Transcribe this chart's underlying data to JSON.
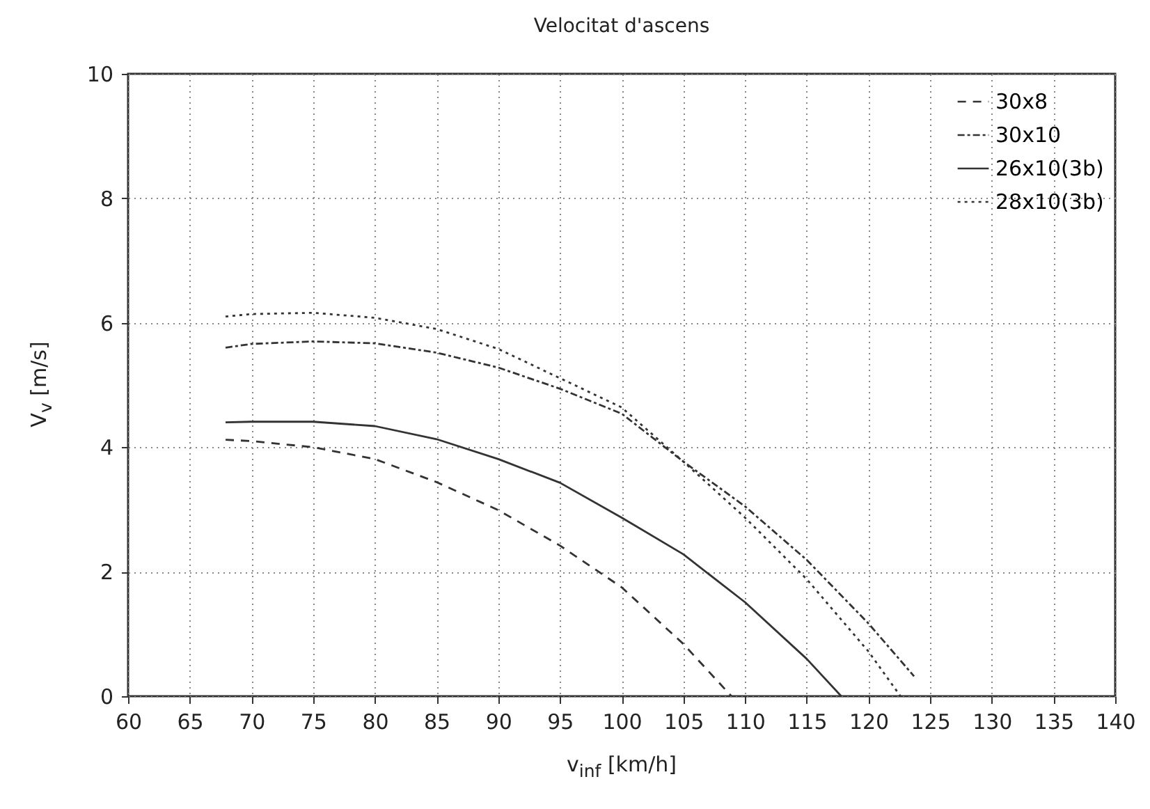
{
  "chart_data": {
    "type": "line",
    "title": "Velocitat d'ascens",
    "xlabel": "v$_{inf}$ [km/h]",
    "ylabel": "V$_{v}$ [m/s]",
    "xlim": [
      60,
      140
    ],
    "xticks": [
      60,
      65,
      70,
      75,
      80,
      85,
      90,
      95,
      100,
      105,
      110,
      115,
      120,
      125,
      130,
      135,
      140
    ],
    "ylim": [
      0,
      10
    ],
    "yticks": [
      0,
      2,
      4,
      6,
      8,
      10
    ],
    "grid": true,
    "legend": "top right",
    "series": [
      {
        "name": "30x8",
        "color": "#333333",
        "line_style": "dashed",
        "x": [
          67.9,
          70,
          75,
          80,
          85,
          90,
          95,
          100,
          105,
          108.9
        ],
        "values": [
          4.12,
          4.1,
          4.0,
          3.81,
          3.44,
          2.99,
          2.42,
          1.75,
          0.84,
          0
        ]
      },
      {
        "name": "30x10",
        "color": "#333333",
        "line_style": "dashdot",
        "x": [
          67.9,
          70,
          75,
          80,
          85,
          90,
          95,
          100,
          105,
          110,
          115,
          120,
          123.7
        ],
        "values": [
          5.6,
          5.66,
          5.7,
          5.67,
          5.52,
          5.28,
          4.94,
          4.54,
          3.77,
          3.05,
          2.19,
          1.17,
          0.32
        ]
      },
      {
        "name": "26x10(3b)",
        "color": "#333333",
        "line_style": "solid",
        "x": [
          67.9,
          70,
          75,
          80,
          85,
          90,
          95,
          100,
          105,
          110,
          115,
          117.8
        ],
        "values": [
          4.4,
          4.41,
          4.41,
          4.34,
          4.13,
          3.81,
          3.43,
          2.87,
          2.28,
          1.51,
          0.6,
          0
        ]
      },
      {
        "name": "28x10(3b)",
        "color": "#333333",
        "line_style": "dotted",
        "x": [
          67.9,
          70,
          75,
          80,
          85,
          90,
          95,
          100,
          105,
          110,
          115,
          120,
          122.6
        ],
        "values": [
          6.1,
          6.14,
          6.16,
          6.08,
          5.9,
          5.58,
          5.11,
          4.64,
          3.77,
          2.87,
          1.88,
          0.72,
          0
        ]
      }
    ]
  }
}
